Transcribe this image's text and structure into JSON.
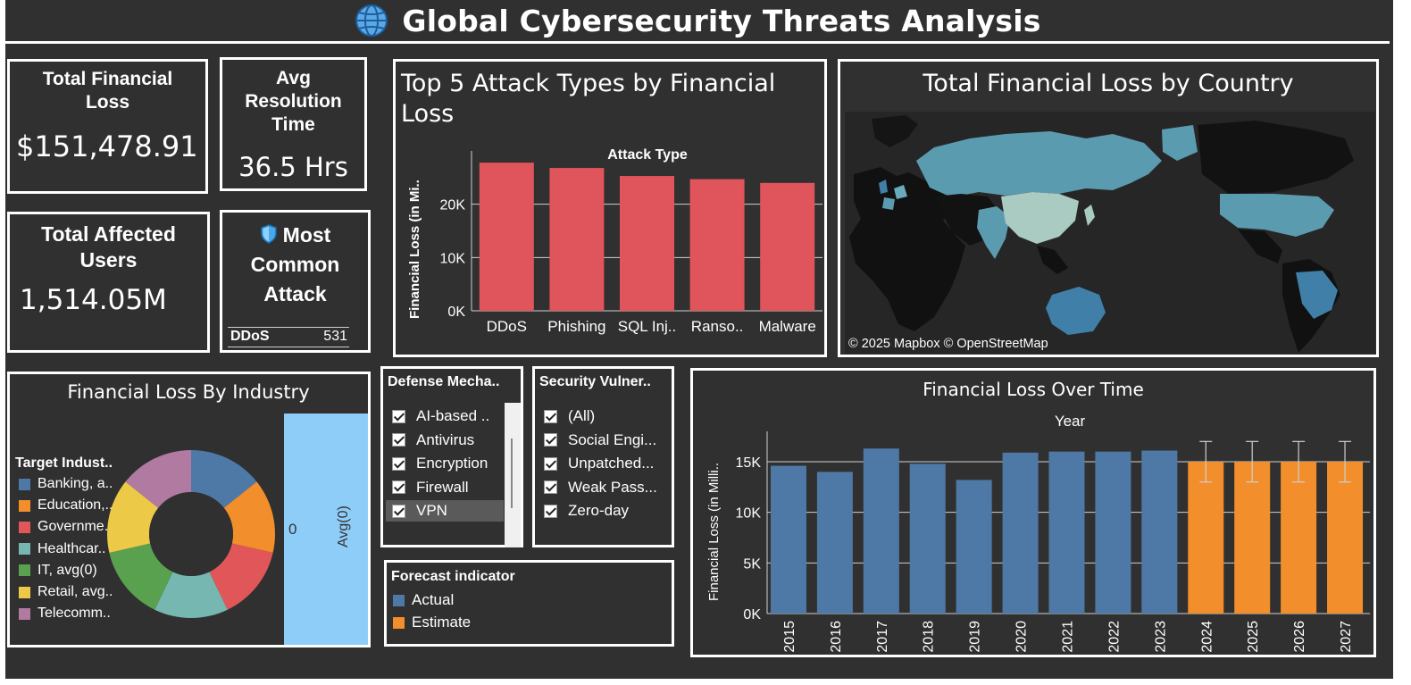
{
  "dashboard": {
    "title": "Global Cybersecurity Threats Analysis",
    "title_icon": "globe-icon"
  },
  "kpis": {
    "total_financial_loss": {
      "label": "Total Financial Loss",
      "value": "$151,478.91"
    },
    "avg_resolution_time": {
      "label": "Avg Resolution Time",
      "value": "36.5 Hrs"
    },
    "total_affected_users": {
      "label": "Total Affected Users",
      "value": "1,514.05M"
    },
    "most_common_attack": {
      "label": "Most Common Attack",
      "icon": "shield-icon",
      "attack": "DDoS",
      "count": "531"
    }
  },
  "top5_attacks": {
    "title": "Top 5 Attack Types by Financial Loss",
    "chart_data": {
      "type": "bar",
      "title": "Top 5 Attack Types by Financial Loss",
      "xlabel": "Attack Type",
      "ylabel": "Financial Loss (in Mi..",
      "categories": [
        "DDoS",
        "Phishing",
        "SQL Inj..",
        "Ranso..",
        "Malware"
      ],
      "values": [
        27800,
        26800,
        25300,
        24700,
        24000
      ],
      "yticks": [
        "0K",
        "10K",
        "20K"
      ],
      "ylim": [
        0,
        30000
      ],
      "color": "#e0555b",
      "grid": true
    }
  },
  "map": {
    "title": "Total Financial Loss by Country",
    "attribution": "© 2025 Mapbox © OpenStreetMap",
    "colors": {
      "ocean": "#262626",
      "land": "#111111",
      "high": "#5b9bb0",
      "mid": "#6aabbb",
      "light": "#a9cbc1",
      "blue": "#3f7fa8"
    }
  },
  "industry": {
    "title": "Financial Loss By Industry",
    "legend_title": "Target Indust..",
    "bar_label_value": "0",
    "bar_label_axis": "Avg(0)",
    "chart_data": {
      "type": "pie",
      "categories": [
        "Banking, a..",
        "Education,..",
        "Governme..",
        "Healthcar..",
        "IT, avg(0)",
        "Retail, avg..",
        "Telecomm.."
      ],
      "values": [
        1,
        1,
        1,
        1,
        1,
        1,
        1
      ],
      "colors": [
        "#4e79a7",
        "#f28e2b",
        "#e15759",
        "#76b7b2",
        "#59a14f",
        "#edc948",
        "#b07aa1"
      ]
    },
    "bar_color": "#8fcdf9"
  },
  "defense_filter": {
    "title": "Defense Mecha..",
    "items": [
      "AI-based ..",
      "Antivirus",
      "Encryption",
      "Firewall",
      "VPN"
    ]
  },
  "vuln_filter": {
    "title": "Security Vulner..",
    "items": [
      "(All)",
      "Social Engi...",
      "Unpatched...",
      "Weak Pass...",
      "Zero-day"
    ]
  },
  "forecast_legend": {
    "title": "Forecast indicator",
    "items": [
      {
        "label": "Actual",
        "color": "#4e79a7"
      },
      {
        "label": "Estimate",
        "color": "#f28e2b"
      }
    ]
  },
  "over_time": {
    "title": "Financial Loss Over Time",
    "chart_data": {
      "type": "bar",
      "title": "Financial Loss Over Time",
      "xlabel": "Year",
      "ylabel": "Financial Loss (in Milli..",
      "categories": [
        "2015",
        "2016",
        "2017",
        "2018",
        "2019",
        "2020",
        "2021",
        "2022",
        "2023",
        "2024",
        "2025",
        "2026",
        "2027"
      ],
      "values": [
        14600,
        14000,
        16300,
        14800,
        13200,
        15900,
        16000,
        16000,
        16100,
        15000,
        15000,
        15000,
        15000
      ],
      "series_type": [
        "Actual",
        "Actual",
        "Actual",
        "Actual",
        "Actual",
        "Actual",
        "Actual",
        "Actual",
        "Actual",
        "Estimate",
        "Estimate",
        "Estimate",
        "Estimate"
      ],
      "error_low": [
        null,
        null,
        null,
        null,
        null,
        null,
        null,
        null,
        null,
        13000,
        13000,
        13000,
        13000
      ],
      "error_high": [
        null,
        null,
        null,
        null,
        null,
        null,
        null,
        null,
        null,
        17000,
        17000,
        17000,
        17000
      ],
      "yticks": [
        "0K",
        "5K",
        "10K",
        "15K"
      ],
      "ylim": [
        0,
        18000
      ],
      "colors": {
        "Actual": "#4e79a7",
        "Estimate": "#f28e2b"
      },
      "grid": true
    }
  }
}
